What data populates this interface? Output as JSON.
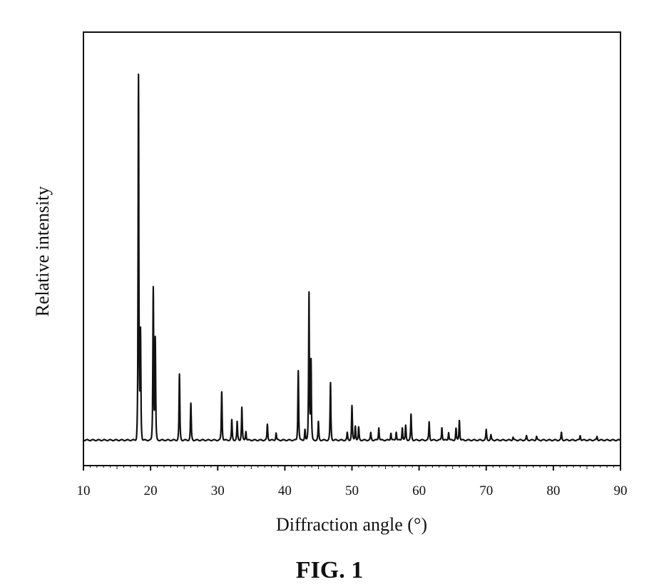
{
  "chart_data": {
    "type": "line",
    "title": "",
    "xlabel": "Diffraction angle (°)",
    "ylabel": "Relative intensity",
    "xlim": [
      10,
      90
    ],
    "ylim": [
      -7,
      112
    ],
    "xticks": [
      10,
      20,
      30,
      40,
      50,
      60,
      70,
      80,
      90
    ],
    "yticks": [],
    "grid": false,
    "line_color": "#111111",
    "peaks": [
      {
        "x": 18.2,
        "y": 100
      },
      {
        "x": 18.5,
        "y": 30
      },
      {
        "x": 20.4,
        "y": 42
      },
      {
        "x": 20.7,
        "y": 28
      },
      {
        "x": 24.3,
        "y": 18
      },
      {
        "x": 26.0,
        "y": 10
      },
      {
        "x": 30.6,
        "y": 13.3
      },
      {
        "x": 32.1,
        "y": 5.5
      },
      {
        "x": 32.9,
        "y": 5
      },
      {
        "x": 33.6,
        "y": 9
      },
      {
        "x": 34.2,
        "y": 2.5
      },
      {
        "x": 37.4,
        "y": 4.3
      },
      {
        "x": 38.7,
        "y": 2
      },
      {
        "x": 42.0,
        "y": 19.2
      },
      {
        "x": 43.0,
        "y": 3
      },
      {
        "x": 43.6,
        "y": 40.6
      },
      {
        "x": 43.9,
        "y": 22
      },
      {
        "x": 45.0,
        "y": 5
      },
      {
        "x": 46.8,
        "y": 15.7
      },
      {
        "x": 49.3,
        "y": 2
      },
      {
        "x": 50.0,
        "y": 9.4
      },
      {
        "x": 50.5,
        "y": 4
      },
      {
        "x": 51.0,
        "y": 3.5
      },
      {
        "x": 52.8,
        "y": 2
      },
      {
        "x": 54.0,
        "y": 3.5
      },
      {
        "x": 55.8,
        "y": 2
      },
      {
        "x": 56.6,
        "y": 2.3
      },
      {
        "x": 57.5,
        "y": 3.5
      },
      {
        "x": 58.0,
        "y": 4
      },
      {
        "x": 58.8,
        "y": 7
      },
      {
        "x": 61.5,
        "y": 5
      },
      {
        "x": 63.4,
        "y": 3.5
      },
      {
        "x": 64.4,
        "y": 2.2
      },
      {
        "x": 65.5,
        "y": 3.2
      },
      {
        "x": 66.0,
        "y": 5.5
      },
      {
        "x": 70.0,
        "y": 2.8
      },
      {
        "x": 70.7,
        "y": 1.4
      },
      {
        "x": 74.0,
        "y": 0.8
      },
      {
        "x": 76.0,
        "y": 1.1
      },
      {
        "x": 77.5,
        "y": 1
      },
      {
        "x": 81.2,
        "y": 2
      },
      {
        "x": 84.0,
        "y": 1.3
      },
      {
        "x": 86.5,
        "y": 1
      }
    ]
  },
  "caption": "FIG. 1"
}
